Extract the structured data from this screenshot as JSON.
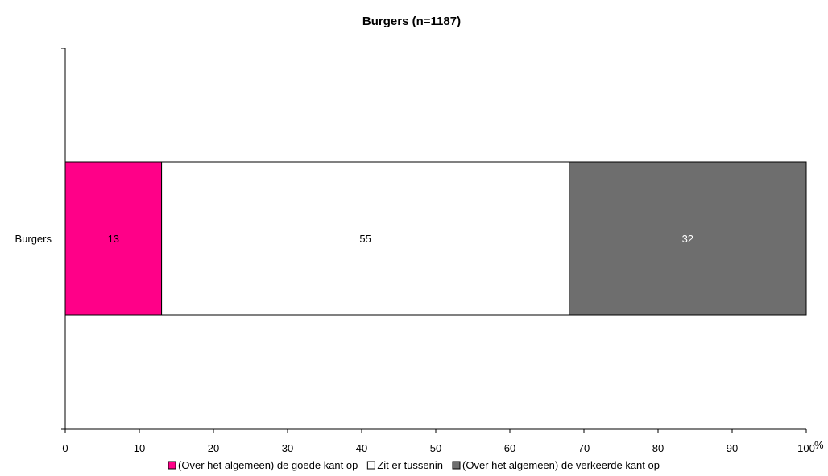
{
  "chart_data": {
    "type": "bar",
    "orientation": "horizontal",
    "stacked": true,
    "title": "Burgers (n=1187)",
    "xlabel": "",
    "ylabel": "",
    "unit_label": "%",
    "xlim": [
      0,
      100
    ],
    "x_ticks": [
      "0",
      "10",
      "20",
      "30",
      "40",
      "50",
      "60",
      "70",
      "80",
      "90",
      "100"
    ],
    "categories": [
      "Burgers"
    ],
    "series": [
      {
        "name": "(Over het algemeen) de goede kant op",
        "values": [
          13
        ],
        "labels": [
          "13"
        ],
        "color": "#ff0088",
        "label_color": "#000000"
      },
      {
        "name": "Zit er tussenin",
        "values": [
          55
        ],
        "labels": [
          "55"
        ],
        "color": "#ffffff",
        "label_color": "#000000"
      },
      {
        "name": "(Over het algemeen) de verkeerde kant op",
        "values": [
          32
        ],
        "labels": [
          "32"
        ],
        "color": "#6e6e6e",
        "label_color": "#ffffff"
      }
    ],
    "grid": false,
    "legend_position": "bottom"
  }
}
